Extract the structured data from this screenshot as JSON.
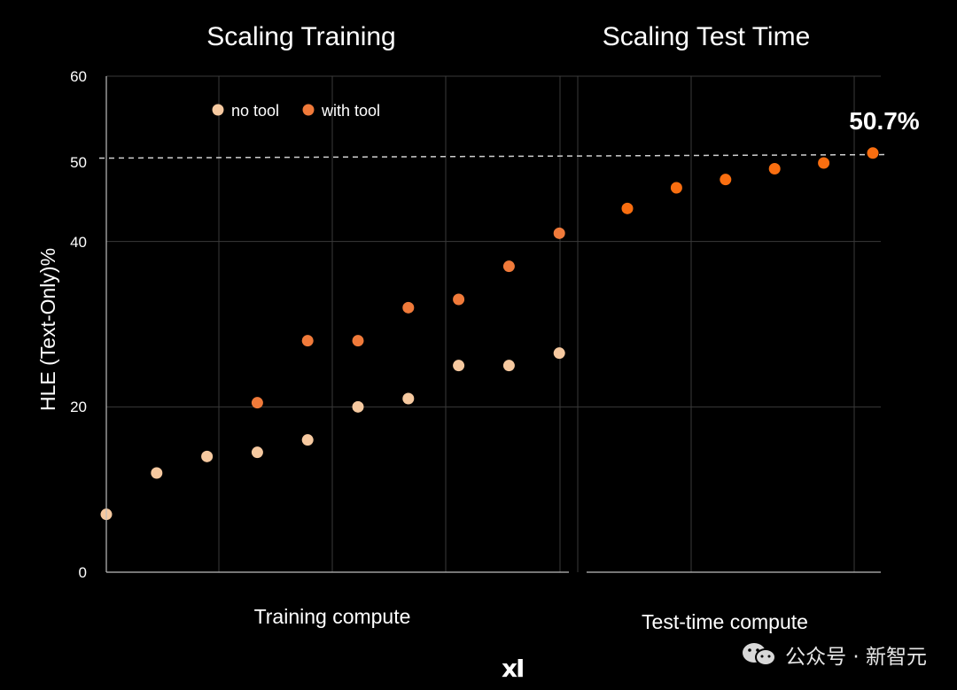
{
  "chart_data": [
    {
      "type": "scatter",
      "title": "Scaling Training",
      "xlabel": "Training compute",
      "ylabel": "HLE (Text-Only)%",
      "ylim": [
        0,
        60
      ],
      "yticks": [
        0,
        20,
        40,
        50,
        60
      ],
      "legend": "top",
      "grid": true,
      "x": [
        0,
        1,
        2,
        3,
        4,
        5,
        6,
        7,
        8,
        9
      ],
      "series": [
        {
          "name": "no tool",
          "color": "#f6c9a0",
          "values": [
            7,
            12,
            14,
            14.5,
            16,
            20,
            21,
            25,
            25,
            26.5
          ]
        },
        {
          "name": "with tool",
          "color": "#f07a3a",
          "values": [
            null,
            null,
            null,
            20.5,
            28,
            28,
            32,
            33,
            37,
            41
          ]
        }
      ]
    },
    {
      "type": "scatter",
      "title": "Scaling Test Time",
      "xlabel": "Test-time compute",
      "ylim": [
        0,
        60
      ],
      "grid": true,
      "x": [
        0,
        1,
        2,
        3,
        4,
        5
      ],
      "series": [
        {
          "name": "with tool",
          "color": "#f96e10",
          "values": [
            44,
            46.5,
            47.5,
            48.8,
            49.5,
            50.7
          ]
        }
      ],
      "annotation": "50.7%",
      "reference_line": 50.3
    }
  ],
  "legend": {
    "no_tool": "no tool",
    "with_tool": "with tool"
  },
  "ticks": {
    "t60": "60",
    "t50": "50",
    "t40": "40",
    "t20": "20",
    "t0": "0"
  },
  "branding": {
    "logo": "xI",
    "watermark": "公众号 · 新智元"
  }
}
